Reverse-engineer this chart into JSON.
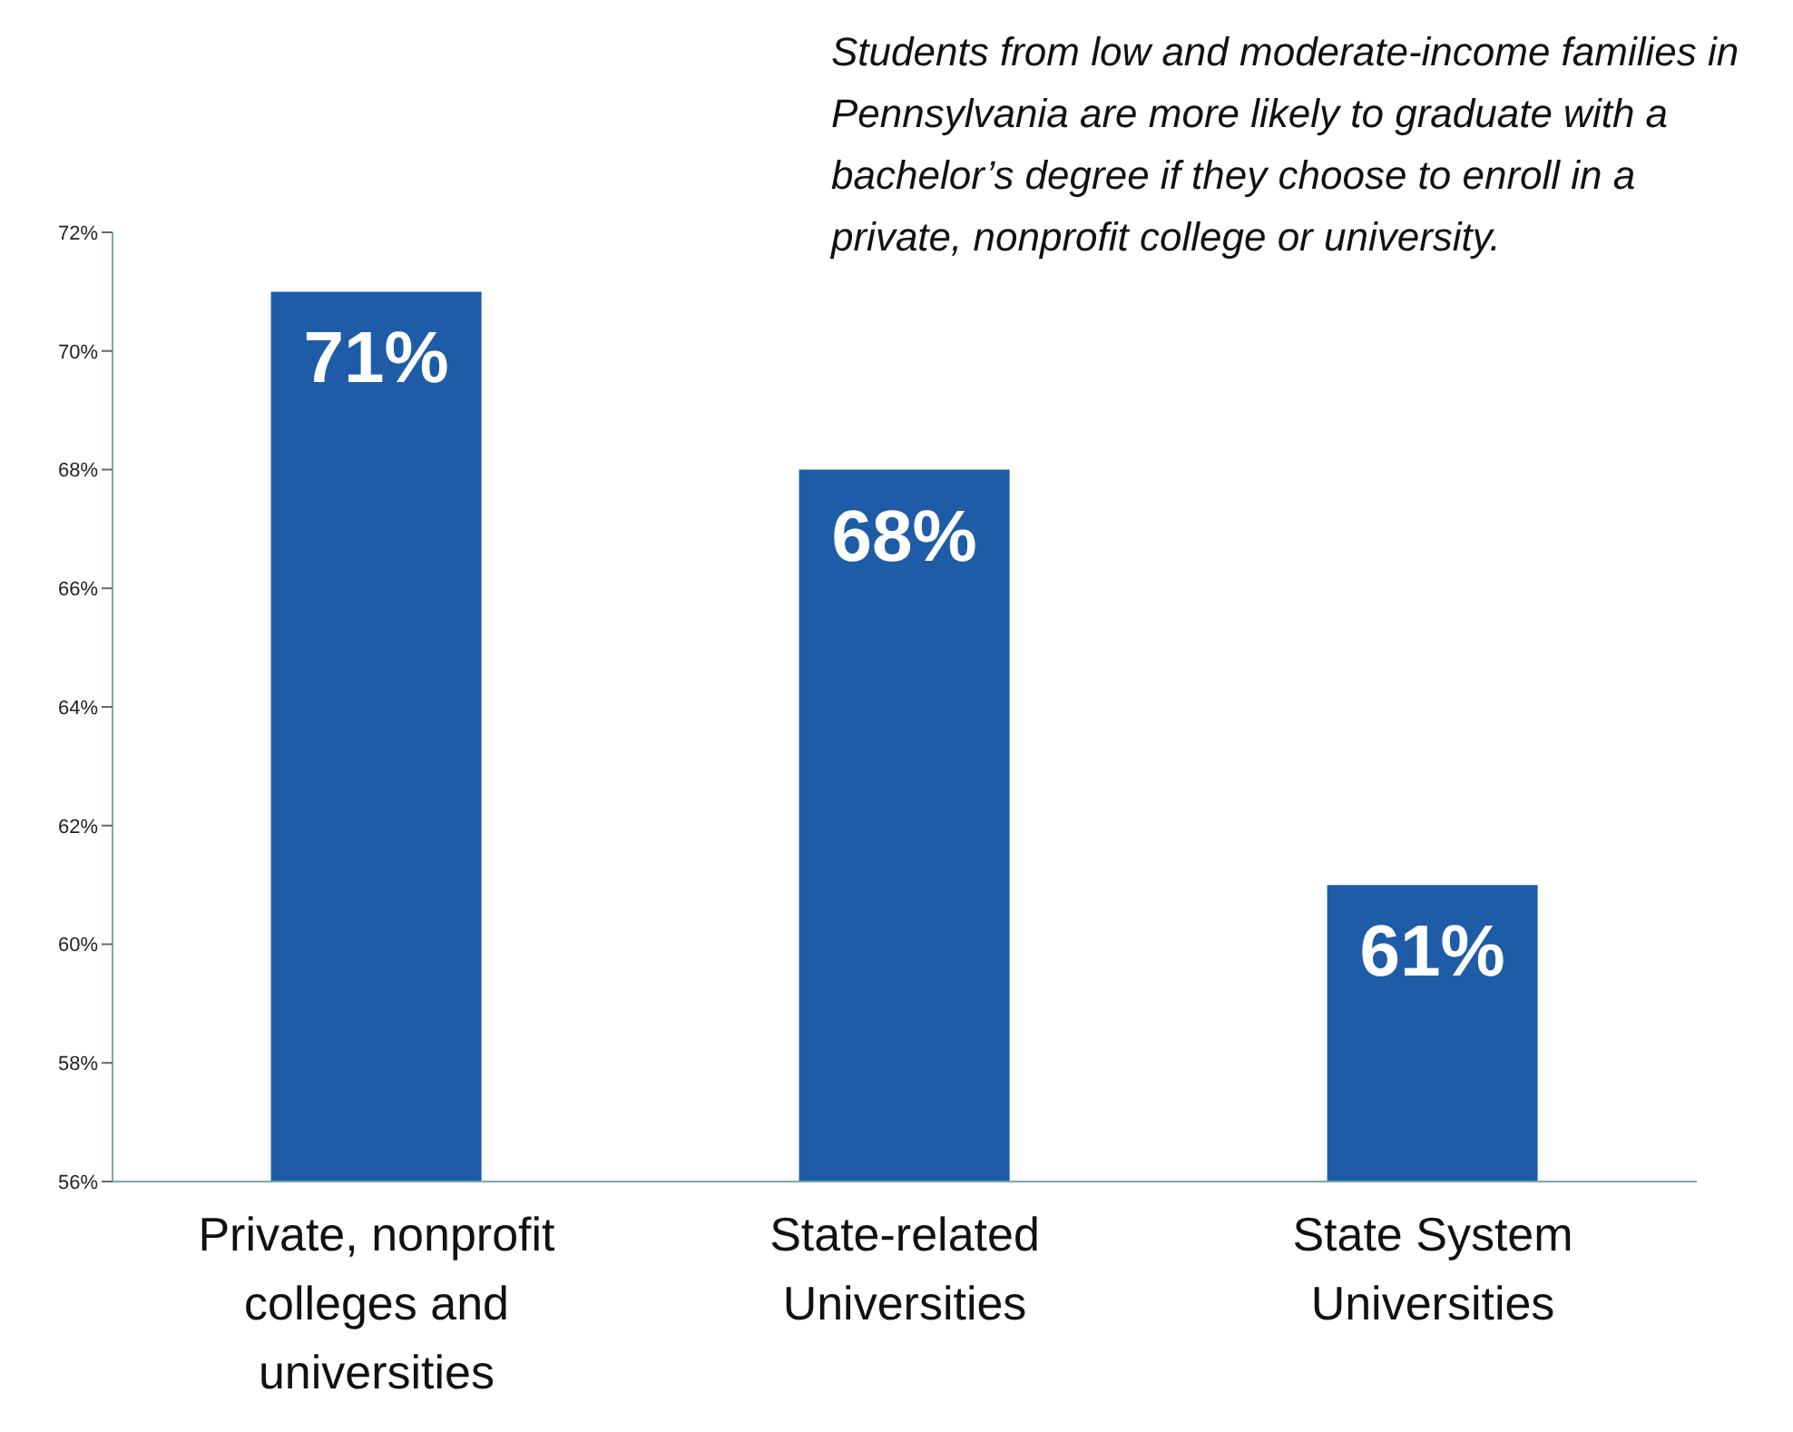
{
  "chart_data": {
    "type": "bar",
    "annotations": [
      "Students from low and moderate-income families in Pennsylvania are more likely to graduate with a bachelor’s degree if they choose to enroll in a private, nonprofit college or university."
    ],
    "categories": [
      "Private, nonprofit colleges and universities",
      "State-related Universities",
      "State System Universities"
    ],
    "values": [
      71,
      68,
      61
    ],
    "value_labels": [
      "71%",
      "68%",
      "61%"
    ],
    "color": "#1f5ca8",
    "ylim": [
      56,
      72
    ],
    "yticks": [
      {
        "value": 56,
        "label": "56%"
      },
      {
        "value": 58,
        "label": "58%"
      },
      {
        "value": 60,
        "label": "60%"
      },
      {
        "value": 62,
        "label": "62%"
      },
      {
        "value": 64,
        "label": "64%"
      },
      {
        "value": 66,
        "label": "66%"
      },
      {
        "value": 68,
        "label": "68%"
      },
      {
        "value": 70,
        "label": "70%"
      },
      {
        "value": 72,
        "label": "72%"
      }
    ],
    "grid": false,
    "legend": false
  }
}
